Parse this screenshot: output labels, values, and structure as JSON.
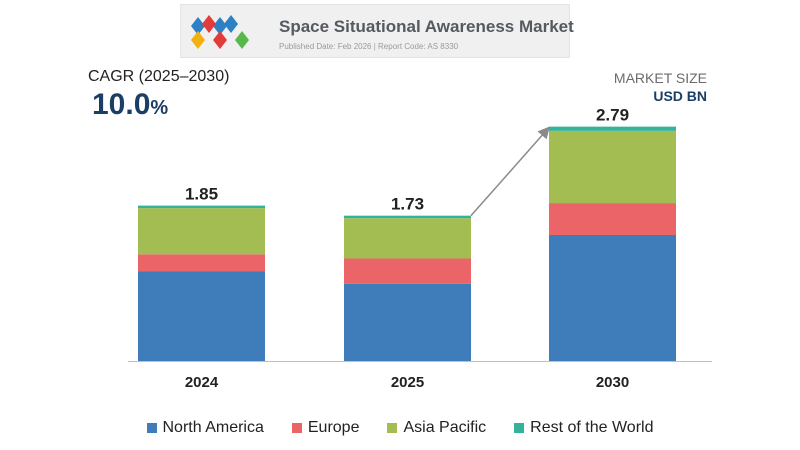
{
  "header": {
    "title": "Space Situational Awareness Market",
    "subtitle": "Published Date: Feb 2026 | Report Code: AS 8330"
  },
  "cagr": {
    "label": "CAGR (2025–2030)",
    "value": "10.0",
    "unit": "%"
  },
  "market_size": {
    "label": "MARKET SIZE",
    "unit": "USD BN"
  },
  "chart_data": {
    "type": "bar",
    "stacked": true,
    "title": "Space Situational Awareness Market",
    "xlabel": "",
    "ylabel": "USD BN",
    "categories": [
      "2024",
      "2025",
      "2030"
    ],
    "totals": [
      "1.85",
      "1.73",
      "2.79"
    ],
    "ylim": [
      0,
      3.0
    ],
    "grid": false,
    "legend_position": "bottom",
    "series": [
      {
        "name": "North America",
        "color": "#3f7cba",
        "values": [
          1.07,
          0.92,
          1.5
        ]
      },
      {
        "name": "Europe",
        "color": "#ea6468",
        "values": [
          0.2,
          0.3,
          0.38
        ]
      },
      {
        "name": "Asia Pacific",
        "color": "#a3bd52",
        "values": [
          0.55,
          0.48,
          0.86
        ]
      },
      {
        "name": "Rest of the World",
        "color": "#35b39a",
        "values": [
          0.03,
          0.03,
          0.05
        ]
      }
    ]
  }
}
